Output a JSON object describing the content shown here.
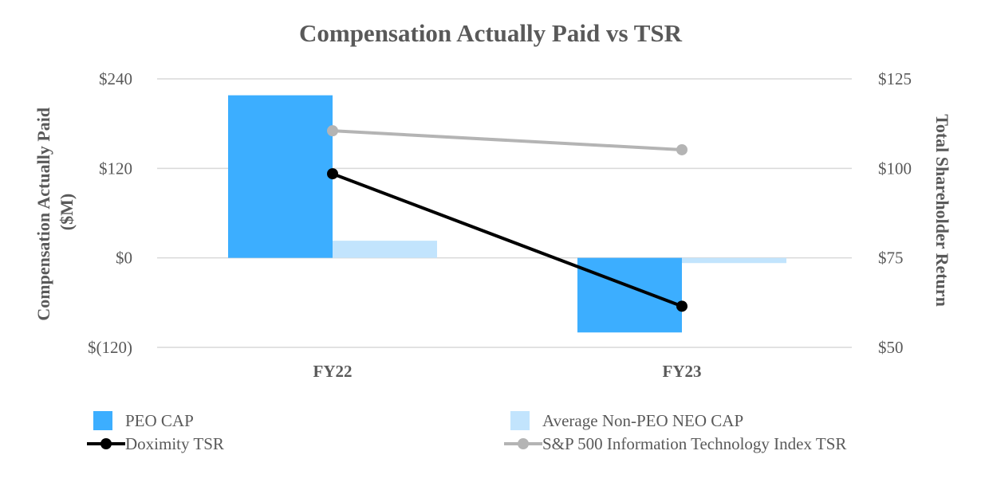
{
  "chart_data": {
    "type": "bar",
    "title": "Compensation Actually Paid vs TSR",
    "categories": [
      "FY22",
      "FY23"
    ],
    "y_left": {
      "label": "Compensation Actually Paid ($M)",
      "label_lines": [
        "Compensation Actually Paid",
        "($M)"
      ],
      "ylim": [
        -120,
        240
      ],
      "ticks": [
        240,
        120,
        0,
        -120
      ],
      "tick_labels": [
        "$240",
        "$120",
        "$0",
        "$(120)"
      ]
    },
    "y_right": {
      "label": "Total Shareholder Return",
      "ylim": [
        50,
        125
      ],
      "ticks": [
        125,
        100,
        75,
        50
      ],
      "tick_labels": [
        "$125",
        "$100",
        "$75",
        "$50"
      ]
    },
    "series": [
      {
        "name": "PEO CAP",
        "type": "bar",
        "axis": "left",
        "color": "#3CAEFF",
        "values": [
          218,
          -100
        ]
      },
      {
        "name": "Average Non-PEO NEO CAP",
        "type": "bar",
        "axis": "left",
        "color": "#C2E4FD",
        "values": [
          23,
          -7
        ]
      },
      {
        "name": "Doximity TSR",
        "type": "line",
        "axis": "right",
        "color": "#000000",
        "values": [
          98.5,
          61.5
        ]
      },
      {
        "name": "S&P 500 Information Technology Index TSR",
        "type": "line",
        "axis": "right",
        "color": "#B4B4B4",
        "values": [
          110.5,
          105.2
        ]
      }
    ],
    "grid": true,
    "legend_position": "bottom"
  }
}
